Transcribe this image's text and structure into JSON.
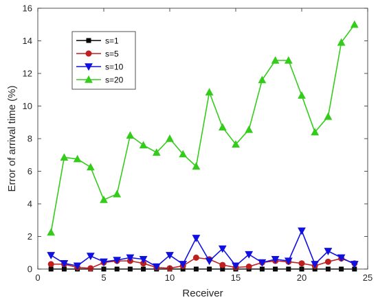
{
  "chart_data": {
    "type": "line",
    "title": "",
    "xlabel": "Receiver",
    "ylabel": "Error of arrival time (%)",
    "xlim": [
      0,
      25
    ],
    "ylim": [
      0,
      16
    ],
    "xticks": [
      0,
      5,
      10,
      15,
      20,
      25
    ],
    "yticks": [
      0,
      2,
      4,
      6,
      8,
      10,
      12,
      14,
      16
    ],
    "grid": false,
    "legend_position": "top-left",
    "x": [
      1,
      2,
      3,
      4,
      5,
      6,
      7,
      8,
      9,
      10,
      11,
      12,
      13,
      14,
      15,
      16,
      17,
      18,
      19,
      20,
      21,
      22,
      23,
      24
    ],
    "series": [
      {
        "name": "s=1",
        "color": "#000000",
        "marker": "square",
        "values": [
          0,
          0,
          0,
          0,
          0,
          0,
          0,
          0,
          0,
          0,
          0,
          0,
          0,
          0,
          0,
          0,
          0,
          0,
          0,
          0,
          0,
          0,
          0,
          0
        ]
      },
      {
        "name": "s=5",
        "color": "#bf1f1f",
        "marker": "circle",
        "values": [
          0.3,
          0.3,
          0.1,
          0.05,
          0.4,
          0.5,
          0.5,
          0.35,
          0.1,
          0.05,
          0.2,
          0.7,
          0.6,
          0.25,
          0.1,
          0.15,
          0.4,
          0.5,
          0.45,
          0.35,
          0.2,
          0.45,
          0.65,
          0.35
        ]
      },
      {
        "name": "s=10",
        "color": "#1010e0",
        "marker": "triangle-down",
        "values": [
          0.85,
          0.35,
          0.2,
          0.8,
          0.45,
          0.55,
          0.7,
          0.6,
          0.15,
          0.85,
          0.3,
          1.9,
          0.5,
          1.25,
          0.2,
          0.9,
          0.4,
          0.6,
          0.5,
          2.35,
          0.3,
          1.1,
          0.7,
          0.3
        ]
      },
      {
        "name": "s=20",
        "color": "#33cc1a",
        "marker": "triangle-up",
        "values": [
          2.25,
          6.85,
          6.75,
          6.25,
          4.25,
          4.6,
          8.2,
          7.6,
          7.15,
          8.0,
          7.05,
          6.3,
          10.85,
          8.7,
          7.65,
          8.55,
          11.6,
          12.8,
          12.8,
          10.65,
          8.4,
          9.35,
          13.9,
          15.0
        ]
      }
    ]
  }
}
